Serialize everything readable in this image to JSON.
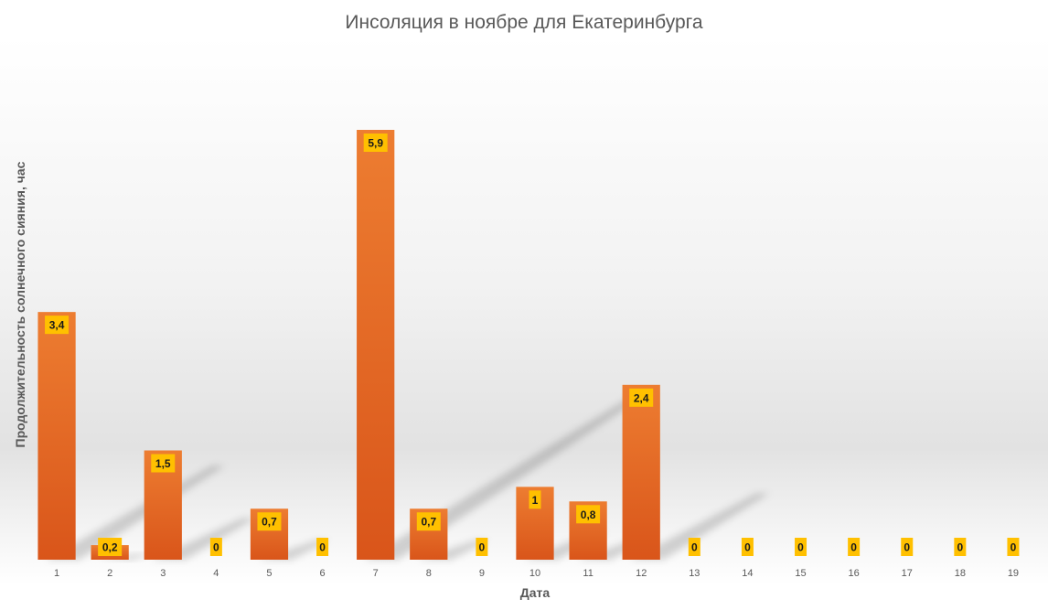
{
  "chart_data": {
    "type": "bar",
    "title": "Инсоляция в ноябре для Екатеринбурга",
    "xlabel": "Дата",
    "ylabel": "Продолжительность солнечного сияния, час",
    "categories": [
      "1",
      "2",
      "3",
      "4",
      "5",
      "6",
      "7",
      "8",
      "9",
      "10",
      "11",
      "12",
      "13",
      "14",
      "15",
      "16",
      "17",
      "18",
      "19"
    ],
    "series": [
      {
        "values": [
          3.4,
          0.2,
          1.5,
          0,
          0.7,
          0,
          5.9,
          0.7,
          0,
          1,
          0.8,
          2.4,
          0,
          0,
          0,
          0,
          0,
          0,
          0
        ]
      }
    ],
    "data_labels": [
      "3,4",
      "0,2",
      "1,5",
      "0",
      "0,7",
      "0",
      "5,9",
      "0,7",
      "0",
      "1",
      "0,8",
      "2,4",
      "0",
      "0",
      "0",
      "0",
      "0",
      "0",
      "0"
    ],
    "ylim": [
      0,
      6.1
    ],
    "grid": false,
    "legend": "none",
    "colors": {
      "bar_top": "#ED7D31",
      "bar_bottom": "#D9551A",
      "label_fill": "#FFC000",
      "background_band": "#E6E6E6",
      "text": "#595959"
    }
  }
}
